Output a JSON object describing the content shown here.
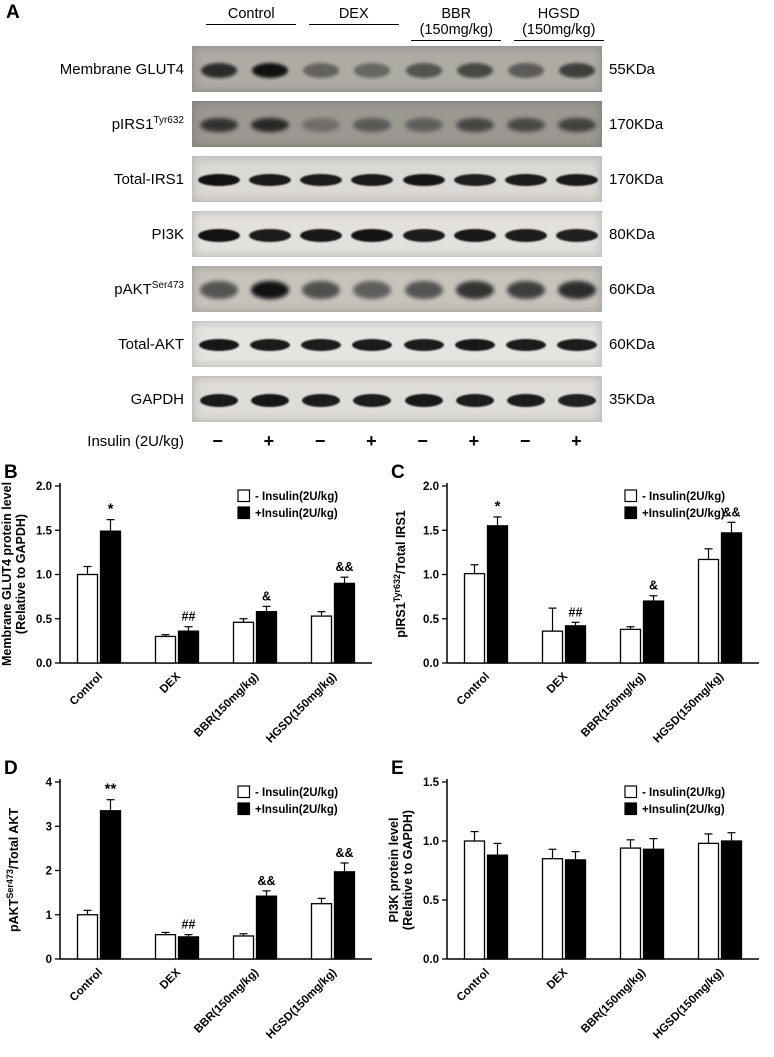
{
  "panel_a": {
    "label": "A",
    "groups": [
      {
        "line1": "Control",
        "line2": ""
      },
      {
        "line1": "DEX",
        "line2": ""
      },
      {
        "line1": "BBR",
        "line2": "(150mg/kg)"
      },
      {
        "line1": "HGSD",
        "line2": "(150mg/kg)"
      }
    ],
    "rows": [
      {
        "parts": [
          {
            "t": "Membrane GLUT4"
          }
        ],
        "kda": "55KDa",
        "bg": "#aeaba5",
        "band_h": 15,
        "band_w": 36,
        "blur": 1.6,
        "bands": [
          0.8,
          0.97,
          0.45,
          0.42,
          0.55,
          0.62,
          0.5,
          0.68
        ]
      },
      {
        "parts": [
          {
            "t": "pIRS1"
          },
          {
            "t": "Tyr632",
            "sup": true
          }
        ],
        "kda": "170KDa",
        "bg": "#9b9892",
        "band_h": 14,
        "band_w": 38,
        "blur": 2.0,
        "bands": [
          0.72,
          0.8,
          0.3,
          0.45,
          0.42,
          0.58,
          0.56,
          0.62
        ]
      },
      {
        "parts": [
          {
            "t": "Total-IRS1"
          }
        ],
        "kda": "170KDa",
        "bg": "#dbd9d5",
        "band_h": 12,
        "band_w": 42,
        "blur": 0.7,
        "bands": [
          0.97,
          0.93,
          0.92,
          0.93,
          0.95,
          0.9,
          0.92,
          0.93
        ]
      },
      {
        "parts": [
          {
            "t": "PI3K"
          }
        ],
        "kda": "80KDa",
        "bg": "#e3e1dd",
        "band_h": 13,
        "band_w": 42,
        "blur": 0.8,
        "bands": [
          0.97,
          0.92,
          0.94,
          0.96,
          0.92,
          0.94,
          0.92,
          0.9
        ]
      },
      {
        "parts": [
          {
            "t": "pAKT"
          },
          {
            "t": "Ser473",
            "sup": true
          }
        ],
        "kda": "60KDa",
        "bg": "#c6c2bc",
        "band_h": 18,
        "band_w": 38,
        "blur": 2.2,
        "bands": [
          0.6,
          0.97,
          0.62,
          0.55,
          0.6,
          0.78,
          0.72,
          0.82
        ]
      },
      {
        "parts": [
          {
            "t": "Total-AKT"
          }
        ],
        "kda": "60KDa",
        "bg": "#e6e4e0",
        "band_h": 12,
        "band_w": 40,
        "blur": 0.7,
        "bands": [
          0.95,
          0.93,
          0.92,
          0.93,
          0.92,
          0.94,
          0.92,
          0.92
        ]
      },
      {
        "parts": [
          {
            "t": "GAPDH"
          }
        ],
        "kda": "35KDa",
        "bg": "#dedcd8",
        "band_h": 13,
        "band_w": 38,
        "blur": 0.8,
        "bands": [
          0.93,
          0.95,
          0.92,
          0.92,
          0.94,
          0.92,
          0.92,
          0.9
        ]
      }
    ],
    "insulin_label": "Insulin (2U/kg)",
    "insulin_signs": [
      "−",
      "+",
      "−",
      "+",
      "−",
      "+",
      "−",
      "+"
    ]
  },
  "chart_data": [
    {
      "panel_label": "B",
      "type": "bar",
      "categories": [
        "Control",
        "DEX",
        "BBR(150mg/kg)",
        "HGSD(150mg/kg)"
      ],
      "series": [
        {
          "name": "- Insulin(2U/kg)",
          "fill": "#ffffff",
          "values": [
            1.0,
            0.3,
            0.46,
            0.53
          ],
          "errors": [
            0.09,
            0.02,
            0.04,
            0.05
          ]
        },
        {
          "name": "+Insulin(2U/kg)",
          "fill": "#000000",
          "values": [
            1.49,
            0.36,
            0.58,
            0.9
          ],
          "errors": [
            0.13,
            0.05,
            0.06,
            0.07
          ]
        }
      ],
      "annotations": [
        {
          "category": 0,
          "series": 1,
          "text": "*"
        },
        {
          "category": 1,
          "series": 1,
          "text": "##"
        },
        {
          "category": 2,
          "series": 1,
          "text": "&"
        },
        {
          "category": 3,
          "series": 1,
          "text": "&&"
        }
      ],
      "ylabel_lines": [
        [
          {
            "t": "Membrane GLUT4 protein level"
          }
        ],
        [
          {
            "t": "(Relative to GAPDH)"
          }
        ]
      ],
      "ylim": [
        0,
        2.0
      ],
      "yticks": [
        "0.0",
        "0.5",
        "1.0",
        "1.5",
        "2.0"
      ],
      "legend_position": "top-right",
      "grid": false
    },
    {
      "panel_label": "C",
      "type": "bar",
      "categories": [
        "Control",
        "DEX",
        "BBR(150mg/kg)",
        "HGSD(150mg/kg)"
      ],
      "series": [
        {
          "name": "- Insulin(2U/kg)",
          "fill": "#ffffff",
          "values": [
            1.01,
            0.36,
            0.38,
            1.17
          ],
          "errors": [
            0.1,
            0.26,
            0.03,
            0.12
          ]
        },
        {
          "name": "+Insulin(2U/kg)",
          "fill": "#000000",
          "values": [
            1.55,
            0.42,
            0.7,
            1.47
          ],
          "errors": [
            0.1,
            0.04,
            0.06,
            0.12
          ]
        }
      ],
      "annotations": [
        {
          "category": 0,
          "series": 1,
          "text": "*"
        },
        {
          "category": 1,
          "series": 1,
          "text": "##"
        },
        {
          "category": 2,
          "series": 1,
          "text": "&"
        },
        {
          "category": 3,
          "series": 1,
          "text": "&&"
        }
      ],
      "ylabel_lines": [
        [
          {
            "t": "pIRS1"
          },
          {
            "t": "Tyr632",
            "sup": true
          },
          {
            "t": "/Total IRS1"
          }
        ]
      ],
      "ylim": [
        0,
        2.0
      ],
      "yticks": [
        "0.0",
        "0.5",
        "1.0",
        "1.5",
        "2.0"
      ],
      "legend_position": "top-right",
      "grid": false
    },
    {
      "panel_label": "D",
      "type": "bar",
      "categories": [
        "Control",
        "DEX",
        "BBR(150mg/kg)",
        "HGSD(150mg/kg)"
      ],
      "series": [
        {
          "name": "- Insulin(2U/kg)",
          "fill": "#ffffff",
          "values": [
            1.0,
            0.55,
            0.52,
            1.25
          ],
          "errors": [
            0.1,
            0.05,
            0.05,
            0.12
          ]
        },
        {
          "name": "+Insulin(2U/kg)",
          "fill": "#000000",
          "values": [
            3.35,
            0.5,
            1.42,
            1.97
          ],
          "errors": [
            0.25,
            0.05,
            0.12,
            0.2
          ]
        }
      ],
      "annotations": [
        {
          "category": 0,
          "series": 1,
          "text": "**"
        },
        {
          "category": 1,
          "series": 1,
          "text": "##"
        },
        {
          "category": 2,
          "series": 1,
          "text": "&&"
        },
        {
          "category": 3,
          "series": 1,
          "text": "&&"
        }
      ],
      "ylabel_lines": [
        [
          {
            "t": "pAKT"
          },
          {
            "t": "Ser473",
            "sup": true
          },
          {
            "t": "/Total AKT"
          }
        ]
      ],
      "ylim": [
        0,
        4
      ],
      "yticks": [
        "0",
        "1",
        "2",
        "3",
        "4"
      ],
      "legend_position": "top-right",
      "grid": false
    },
    {
      "panel_label": "E",
      "type": "bar",
      "categories": [
        "Control",
        "DEX",
        "BBR(150mg/kg)",
        "HGSD(150mg/kg)"
      ],
      "series": [
        {
          "name": "- Insulin(2U/kg)",
          "fill": "#ffffff",
          "values": [
            1.0,
            0.85,
            0.94,
            0.98
          ],
          "errors": [
            0.08,
            0.08,
            0.07,
            0.08
          ]
        },
        {
          "name": "+Insulin(2U/kg)",
          "fill": "#000000",
          "values": [
            0.88,
            0.84,
            0.93,
            1.0
          ],
          "errors": [
            0.1,
            0.07,
            0.09,
            0.07
          ]
        }
      ],
      "annotations": [],
      "ylabel_lines": [
        [
          {
            "t": "PI3K protein level"
          }
        ],
        [
          {
            "t": "(Relative to GAPDH)"
          }
        ]
      ],
      "ylim": [
        0,
        1.5
      ],
      "yticks": [
        "0.0",
        "0.5",
        "1.0",
        "1.5"
      ],
      "legend_position": "top-right",
      "grid": false
    }
  ],
  "colors": {
    "bar_open": "#ffffff",
    "bar_filled": "#000000",
    "axis": "#000000",
    "band": "#0c0c0c"
  }
}
